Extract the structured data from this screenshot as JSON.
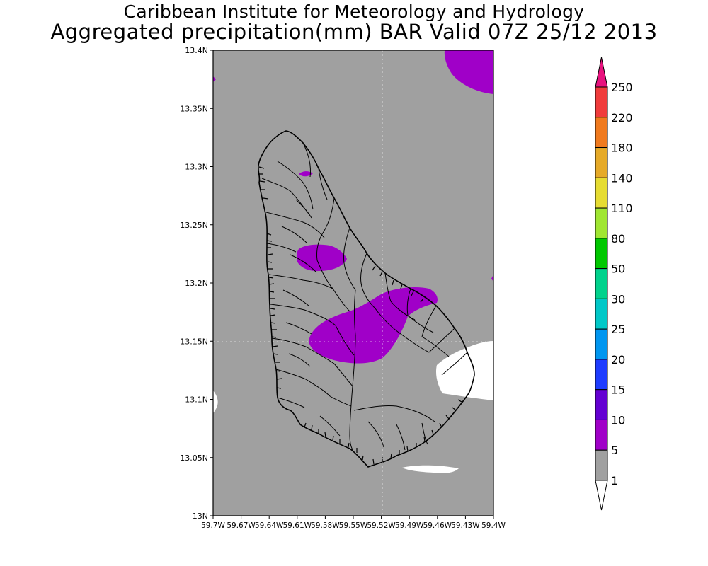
{
  "title_line1": "Caribbean Institute for Meteorology and Hydrology",
  "title_line2": "Aggregated precipitation(mm) BAR Valid 07Z 25/12 2013",
  "lat_labels": [
    "13.4N",
    "13.35N",
    "13.3N",
    "13.25N",
    "13.2N",
    "13.15N",
    "13.1N",
    "13.05N",
    "13N"
  ],
  "lon_labels": [
    "59.7W",
    "59.67W",
    "59.64W",
    "59.61W",
    "59.58W",
    "59.55W",
    "59.52W",
    "59.49W",
    "59.46W",
    "59.43W",
    "59.4W"
  ],
  "colorbar": {
    "labels": [
      "250",
      "220",
      "180",
      "140",
      "110",
      "80",
      "50",
      "30",
      "25",
      "20",
      "15",
      "10",
      "5",
      "1"
    ],
    "colors": {
      "above_250": "#e8127e",
      "220_250": "#f03c3c",
      "180_220": "#f07a1e",
      "140_180": "#e6aa28",
      "110_140": "#e6dc32",
      "80_110": "#a0e632",
      "50_80": "#00c800",
      "30_50": "#00d28c",
      "25_30": "#00c8c8",
      "20_25": "#0096f0",
      "15_20": "#1e3cff",
      "10_15": "#6400d2",
      "5_10": "#a000c8",
      "1_5": "#a0a0a0",
      "below_1": "#ffffff"
    }
  },
  "map": {
    "background_color": "#a0a0a0",
    "precip_color": "#a000c8",
    "dry_color": "#ffffff"
  }
}
